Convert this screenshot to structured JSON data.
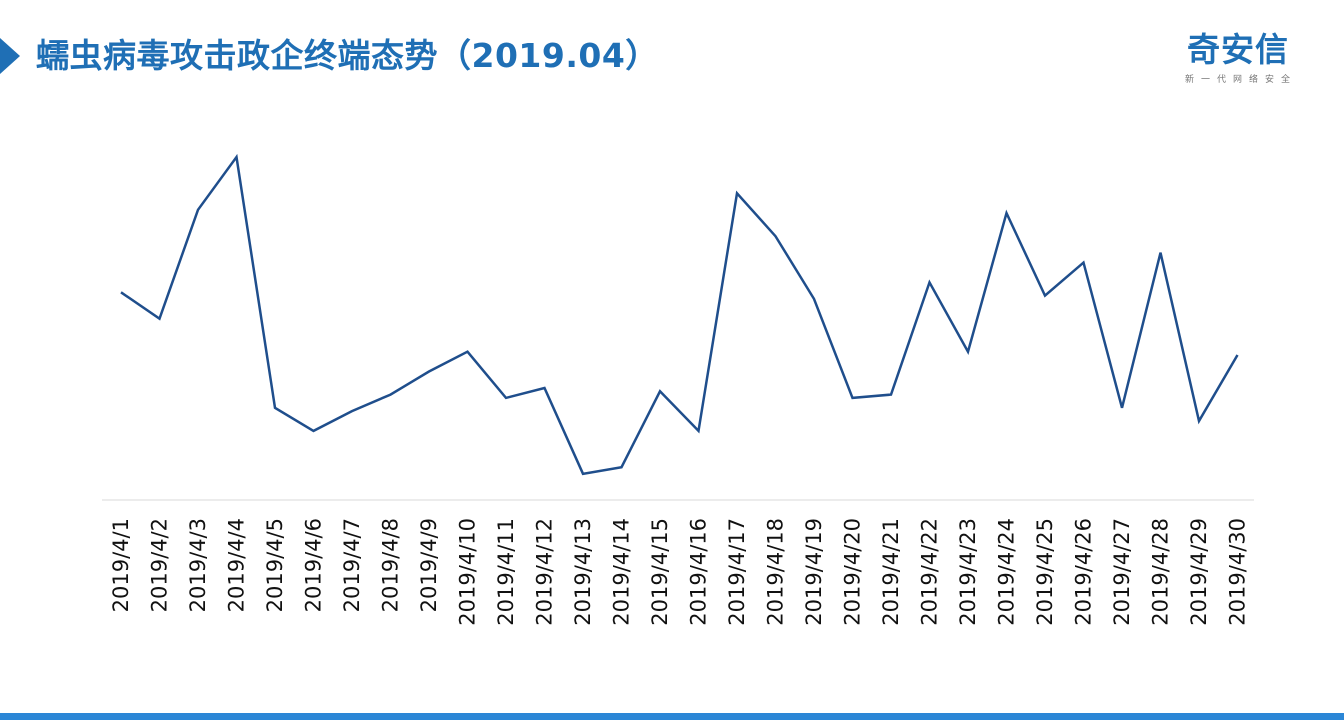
{
  "header": {
    "title": "蠕虫病毒攻击政企终端态势（2019.04）"
  },
  "logo": {
    "name": "奇安信",
    "tagline": "新一代网络安全"
  },
  "colors": {
    "title": "#1f6fb5",
    "line": "#1f4e8c",
    "accent_bar": "#2b86d6",
    "axis": "#d9d9d9"
  },
  "chart_data": {
    "type": "line",
    "title": "",
    "xlabel": "",
    "ylabel": "",
    "y_axis_shown": false,
    "grid": false,
    "legend": "none",
    "ylim": [
      0,
      100
    ],
    "categories": [
      "2019/4/1",
      "2019/4/2",
      "2019/4/3",
      "2019/4/4",
      "2019/4/5",
      "2019/4/6",
      "2019/4/7",
      "2019/4/8",
      "2019/4/9",
      "2019/4/10",
      "2019/4/11",
      "2019/4/12",
      "2019/4/13",
      "2019/4/14",
      "2019/4/15",
      "2019/4/16",
      "2019/4/17",
      "2019/4/18",
      "2019/4/19",
      "2019/4/20",
      "2019/4/21",
      "2019/4/22",
      "2019/4/23",
      "2019/4/24",
      "2019/4/25",
      "2019/4/26",
      "2019/4/27",
      "2019/4/28",
      "2019/4/29",
      "2019/4/30"
    ],
    "series": [
      {
        "values": [
          59,
          51,
          84,
          100,
          24,
          17,
          23,
          28,
          35,
          41,
          27,
          30,
          4,
          6,
          29,
          17,
          89,
          76,
          57,
          27,
          28,
          62,
          41,
          83,
          58,
          68,
          24,
          71,
          20,
          40
        ]
      }
    ]
  }
}
